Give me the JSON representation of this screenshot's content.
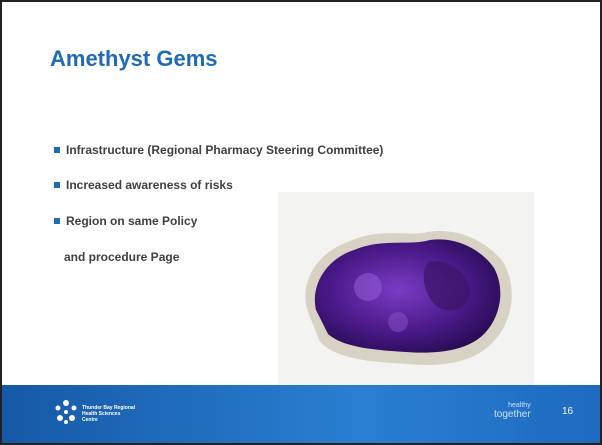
{
  "header": {
    "title": "Amethyst Gems"
  },
  "bullets": [
    "Infrastructure (Regional Pharmacy Steering Committee)",
    "Increased awareness of risks",
    "Region on same Policy"
  ],
  "continuation": "and procedure Page",
  "footer": {
    "logo_text": [
      "Thunder Bay Regional",
      "Health Sciences",
      "Centre"
    ],
    "tagline": [
      "healthy",
      "together"
    ],
    "page_number": "16"
  }
}
